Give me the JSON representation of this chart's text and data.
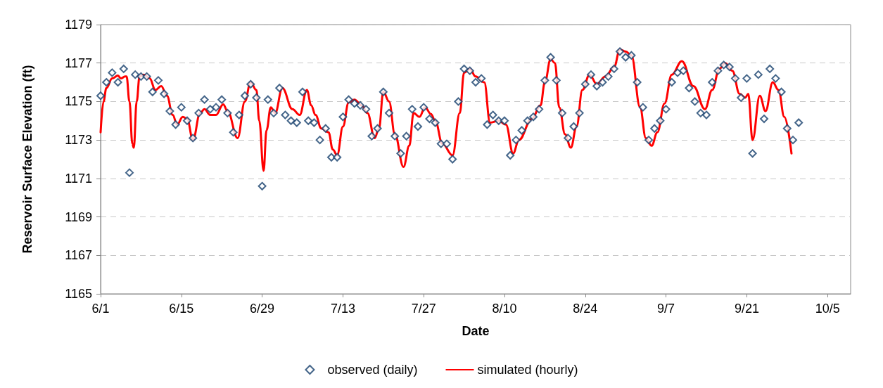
{
  "chart_data": {
    "type": "line",
    "xlabel": "Date",
    "ylabel": "Reservoir Surface Elevation (ft)",
    "xlim": [
      "--06-01",
      "--10-09"
    ],
    "xticks": [
      {
        "value": "--06-01",
        "label": "6/1"
      },
      {
        "value": "--06-15",
        "label": "6/15"
      },
      {
        "value": "--06-29",
        "label": "6/29"
      },
      {
        "value": "--07-13",
        "label": "7/13"
      },
      {
        "value": "--07-27",
        "label": "7/27"
      },
      {
        "value": "--08-10",
        "label": "8/10"
      },
      {
        "value": "--08-24",
        "label": "8/24"
      },
      {
        "value": "--09-07",
        "label": "9/7"
      },
      {
        "value": "--09-21",
        "label": "9/21"
      },
      {
        "value": "--10-05",
        "label": "10/5"
      }
    ],
    "ylim": [
      1165,
      1179
    ],
    "yticks": [
      1165,
      1167,
      1169,
      1171,
      1173,
      1175,
      1177,
      1179
    ],
    "grid": "y",
    "legend": "bottom",
    "x": [
      "--06-01",
      "--06-02",
      "--06-03",
      "--06-04",
      "--06-05",
      "--06-06",
      "--06-07",
      "--06-08",
      "--06-09",
      "--06-10",
      "--06-11",
      "--06-12",
      "--06-13",
      "--06-14",
      "--06-15",
      "--06-16",
      "--06-17",
      "--06-18",
      "--06-19",
      "--06-20",
      "--06-21",
      "--06-22",
      "--06-23",
      "--06-24",
      "--06-25",
      "--06-26",
      "--06-27",
      "--06-28",
      "--06-29",
      "--06-30",
      "--07-01",
      "--07-02",
      "--07-03",
      "--07-04",
      "--07-05",
      "--07-06",
      "--07-07",
      "--07-08",
      "--07-09",
      "--07-10",
      "--07-11",
      "--07-12",
      "--07-13",
      "--07-14",
      "--07-15",
      "--07-16",
      "--07-17",
      "--07-18",
      "--07-19",
      "--07-20",
      "--07-21",
      "--07-22",
      "--07-23",
      "--07-24",
      "--07-25",
      "--07-26",
      "--07-27",
      "--07-28",
      "--07-29",
      "--07-30",
      "--07-31",
      "--08-01",
      "--08-02",
      "--08-03",
      "--08-04",
      "--08-05",
      "--08-06",
      "--08-07",
      "--08-08",
      "--08-09",
      "--08-10",
      "--08-11",
      "--08-12",
      "--08-13",
      "--08-14",
      "--08-15",
      "--08-16",
      "--08-17",
      "--08-18",
      "--08-19",
      "--08-20",
      "--08-21",
      "--08-22",
      "--08-23",
      "--08-24",
      "--08-25",
      "--08-26",
      "--08-27",
      "--08-28",
      "--08-29",
      "--08-30",
      "--08-31",
      "--09-01",
      "--09-02",
      "--09-03",
      "--09-04",
      "--09-05",
      "--09-06",
      "--09-07",
      "--09-08",
      "--09-09",
      "--09-10",
      "--09-11",
      "--09-12",
      "--09-13",
      "--09-14",
      "--09-15",
      "--09-16",
      "--09-17",
      "--09-18",
      "--09-19",
      "--09-20",
      "--09-21",
      "--09-22",
      "--09-23",
      "--09-24",
      "--09-25",
      "--09-26",
      "--09-27",
      "--09-28",
      "--09-29",
      "--09-30"
    ],
    "series": [
      {
        "name": "observed (daily)",
        "type": "scatter",
        "marker": "diamond",
        "color": "#17406d",
        "values": [
          1175.3,
          1176.0,
          1176.5,
          1176.0,
          1176.7,
          1171.3,
          1176.4,
          1176.3,
          1176.3,
          1175.5,
          1176.1,
          1175.4,
          1174.5,
          1173.8,
          1174.7,
          1174.0,
          1173.1,
          1174.4,
          1175.1,
          1174.6,
          1174.7,
          1175.1,
          1174.4,
          1173.4,
          1174.3,
          1175.3,
          1175.9,
          1175.2,
          1170.6,
          1175.1,
          1174.4,
          1175.7,
          1174.3,
          1174.0,
          1173.9,
          1175.5,
          1174.0,
          1173.9,
          1173.0,
          1173.6,
          1172.1,
          1172.1,
          1174.2,
          1175.1,
          1174.9,
          1174.8,
          1174.6,
          1173.2,
          1173.6,
          1175.5,
          1174.4,
          1173.2,
          1172.3,
          1173.2,
          1174.6,
          1173.7,
          1174.7,
          1174.1,
          1173.9,
          1172.8,
          1172.8,
          1172.0,
          1175.0,
          1176.7,
          1176.6,
          1176.0,
          1176.2,
          1173.8,
          1174.3,
          1174.0,
          1174.0,
          1172.2,
          1173.0,
          1173.5,
          1174.0,
          1174.2,
          1174.6,
          1176.1,
          1177.3,
          1176.1,
          1174.4,
          1173.1,
          1173.7,
          1174.4,
          1175.9,
          1176.4,
          1175.8,
          1176.0,
          1176.3,
          1176.7,
          1177.6,
          1177.3,
          1177.4,
          1176.0,
          1174.7,
          1173.0,
          1173.6,
          1174.0,
          1174.6,
          1176.0,
          1176.5,
          1176.6,
          1175.7,
          1175.0,
          1174.4,
          1174.3,
          1176.0,
          1176.6,
          1176.9,
          1176.8,
          1176.2,
          1175.2,
          1176.2,
          1172.3,
          1176.4,
          1174.1,
          1176.7,
          1176.2,
          1175.5,
          1173.6,
          1173.0,
          1173.9
        ]
      },
      {
        "name": "simulated (hourly)",
        "marker": "none",
        "color": "#ff0000",
        "x": [
          "--06-01T00:00",
          "--06-01T12:00",
          "--06-02T00:00",
          "--06-03T00:00",
          "--06-04T00:00",
          "--06-04T12:00",
          "--06-05T06:00",
          "--06-05T12:00",
          "--06-06T00:00",
          "--06-06T12:00",
          "--06-06T18:00",
          "--06-07T06:00",
          "--06-07T18:00",
          "--06-08T12:00",
          "--06-09T12:00",
          "--06-10T12:00",
          "--06-11T12:00",
          "--06-12T12:00",
          "--06-13T12:00",
          "--06-14T06:00",
          "--06-15T06:00",
          "--06-16T00:00",
          "--06-17T00:00",
          "--06-18T06:00",
          "--06-19T00:00",
          "--06-20T00:00",
          "--06-21T00:00",
          "--06-22T06:00",
          "--06-23T00:00",
          "--06-24T18:00",
          "--06-26T00:00",
          "--06-27T00:00",
          "--06-28T00:00",
          "--06-28T12:00",
          "--06-29T06:00",
          "--06-29T18:00",
          "--06-30T12:00",
          "--07-01T06:00",
          "--07-02T12:00",
          "--07-04T06:00",
          "--07-05T12:00",
          "--07-06T18:00",
          "--07-07T12:00",
          "--07-08T06:00",
          "--07-09T06:00",
          "--07-10T12:00",
          "--07-11T06:00",
          "--07-12T00:00",
          "--07-13T00:00",
          "--07-14T00:00",
          "--07-15T00:00",
          "--07-16T06:00",
          "--07-17T06:00",
          "--07-18T12:00",
          "--07-19T06:00",
          "--07-20T00:00",
          "--07-21T00:00",
          "--07-22T00:00",
          "--07-23T12:00",
          "--07-24T12:00",
          "--07-25T06:00",
          "--07-26T06:00",
          "--07-27T06:00",
          "--07-28T06:00",
          "--07-29T00:00",
          "--07-30T06:00",
          "--08-01T00:00",
          "--08-02T06:00",
          "--08-03T00:00",
          "--08-04T00:00",
          "--08-05T00:00",
          "--08-06T12:00",
          "--08-07T12:00",
          "--08-09T00:00",
          "--08-10T06:00",
          "--08-11T12:00",
          "--08-12T12:00",
          "--08-14T18:00",
          "--08-16T06:00",
          "--08-17T00:00",
          "--08-18T00:00",
          "--08-18T18:00",
          "--08-19T12:00",
          "--08-20T12:00",
          "--08-21T12:00",
          "--08-22T12:00",
          "--08-23T12:00",
          "--08-24T18:00",
          "--08-26T00:00",
          "--08-27T12:00",
          "--08-29T00:00",
          "--08-30T00:00",
          "--08-31T00:00",
          "--09-01T00:00",
          "--09-02T12:00",
          "--09-03T12:00",
          "--09-04T12:00",
          "--09-05T12:00",
          "--09-06T18:00",
          "--09-08T00:00",
          "--09-09T18:00",
          "--09-11T18:00",
          "--09-13T18:00",
          "--09-15T00:00",
          "--09-16T06:00",
          "--09-17T06:00",
          "--09-18T12:00",
          "--09-19T18:00",
          "--09-20T18:00",
          "--09-21T06:00",
          "--09-22T00:00",
          "--09-23T06:00",
          "--09-24T06:00",
          "--09-25T12:00",
          "--09-26T12:00",
          "--09-27T12:00",
          "--09-28T18:00"
        ],
        "values": [
          1173.4,
          1175.0,
          1175.7,
          1176.2,
          1176.35,
          1176.2,
          1176.3,
          1176.3,
          1175.0,
          1172.8,
          1172.6,
          1175.0,
          1176.3,
          1176.4,
          1176.2,
          1175.6,
          1175.8,
          1175.3,
          1174.3,
          1173.8,
          1174.2,
          1174.1,
          1173.0,
          1174.4,
          1174.6,
          1174.3,
          1174.3,
          1174.85,
          1174.5,
          1173.1,
          1175.0,
          1176.0,
          1175.6,
          1174.0,
          1171.4,
          1173.5,
          1174.7,
          1174.4,
          1175.7,
          1174.6,
          1174.3,
          1175.6,
          1174.8,
          1174.3,
          1173.6,
          1173.4,
          1172.5,
          1172.2,
          1173.7,
          1174.95,
          1175.1,
          1174.8,
          1174.4,
          1173.1,
          1173.6,
          1175.5,
          1175.0,
          1173.3,
          1171.6,
          1172.7,
          1174.4,
          1174.2,
          1174.7,
          1174.35,
          1174.0,
          1172.8,
          1172.2,
          1174.4,
          1176.5,
          1176.7,
          1176.3,
          1176.0,
          1173.9,
          1174.0,
          1173.8,
          1172.3,
          1173.0,
          1174.1,
          1174.8,
          1176.0,
          1177.2,
          1177.0,
          1174.7,
          1173.3,
          1172.6,
          1173.7,
          1175.6,
          1176.4,
          1175.9,
          1176.3,
          1176.8,
          1177.7,
          1177.6,
          1177.4,
          1174.7,
          1173.1,
          1172.7,
          1173.4,
          1174.9,
          1176.4,
          1177.1,
          1175.8,
          1174.6,
          1175.6,
          1176.7,
          1177.0,
          1176.6,
          1175.4,
          1175.2,
          1175.4,
          1173.0,
          1175.3,
          1174.5,
          1176.0,
          1175.6,
          1174.2,
          1172.3
        ]
      }
    ]
  }
}
